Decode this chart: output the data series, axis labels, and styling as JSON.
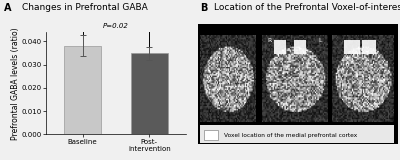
{
  "title_a": "Changes in Prefrontal GABA",
  "title_b": "Location of the Prefrontal Voxel-of-interest",
  "label_a": "A",
  "label_b": "B",
  "categories": [
    "Baseline",
    "Post-\nintervention"
  ],
  "values": [
    0.0381,
    0.0348
  ],
  "errors": [
    0.0045,
    0.0028
  ],
  "bar_colors": [
    "#c8c8c8",
    "#5a5a5a"
  ],
  "bar_edgecolor": "#999999",
  "ylabel": "Prefrontal GABA levels (ratio)",
  "ylim": [
    0,
    0.044
  ],
  "yticks": [
    0.0,
    0.01,
    0.02,
    0.03,
    0.04
  ],
  "pvalue_text": "P=0.02",
  "background_color": "#f0f0f0",
  "title_fontsize": 6.5,
  "axis_fontsize": 5.5,
  "tick_fontsize": 5,
  "legend_text": "Voxel location of the medial prefrontal cortex"
}
